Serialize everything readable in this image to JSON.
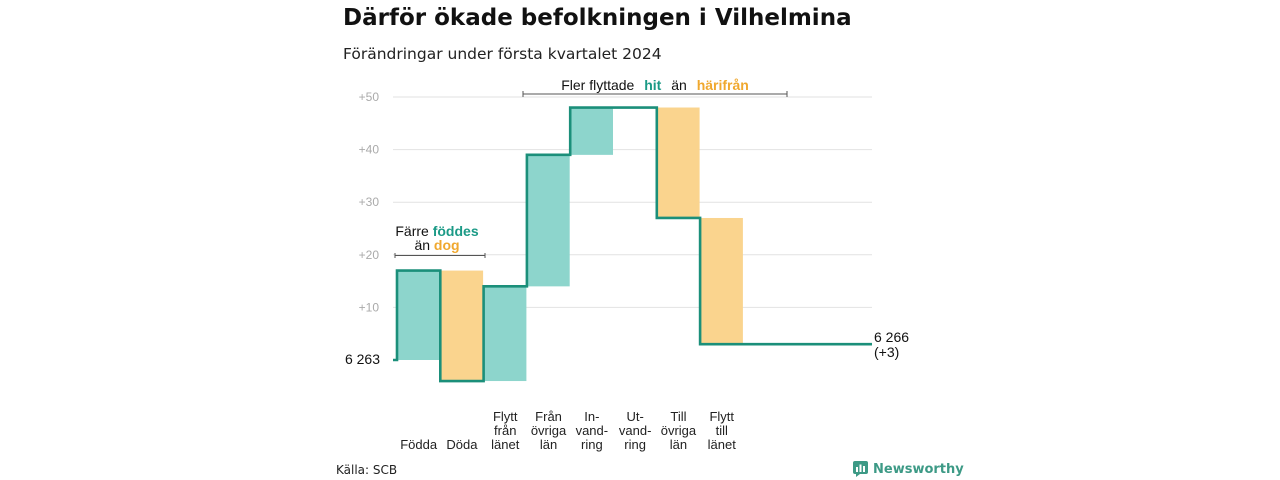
{
  "title": "Därför ökade befolkningen i Vilhelmina",
  "subtitle": "Förändringar under första kvartalet 2024",
  "source": "Källa: SCB",
  "brand": {
    "name": "Newsworthy",
    "icon": "newsworthy-logo-icon"
  },
  "colors": {
    "increase": "#8dd5cc",
    "decrease": "#fad48e",
    "line": "#1b8f7a",
    "teal_text": "#1b9a86",
    "orange_text": "#f0a82e"
  },
  "annotations": {
    "births": {
      "line1_a": "Färre",
      "line1_b": "föddes",
      "line2_a": "än",
      "line2_b": "dog"
    },
    "moves": {
      "text_a": "Fler flyttade",
      "text_b": "hit",
      "text_c": "än",
      "text_d": "härifrån"
    }
  },
  "chart_data": {
    "type": "waterfall",
    "start": {
      "label": "6 263",
      "value": 6263
    },
    "end": {
      "label": "6 266",
      "change_label": "(+3)",
      "value": 6266
    },
    "y_axis": {
      "baseline": 6263,
      "ticks": [
        "+10",
        "+20",
        "+30",
        "+40",
        "+50"
      ],
      "tick_values": [
        10,
        20,
        30,
        40,
        50
      ],
      "range": [
        -4,
        50
      ]
    },
    "categories": [
      {
        "lines": [
          "Födda"
        ],
        "change": 17
      },
      {
        "lines": [
          "Döda"
        ],
        "change": -21
      },
      {
        "lines": [
          "Flytt",
          "från",
          "länet"
        ],
        "change": 18
      },
      {
        "lines": [
          "Från",
          "övriga",
          "län"
        ],
        "change": 25
      },
      {
        "lines": [
          "In-",
          "vand-",
          "ring"
        ],
        "change": 9
      },
      {
        "lines": [
          "Ut-",
          "vand-",
          "ring"
        ],
        "change": 0
      },
      {
        "lines": [
          "Till",
          "övriga",
          "län"
        ],
        "change": -21
      },
      {
        "lines": [
          "Flytt",
          "till",
          "länet"
        ],
        "change": -24
      }
    ]
  }
}
